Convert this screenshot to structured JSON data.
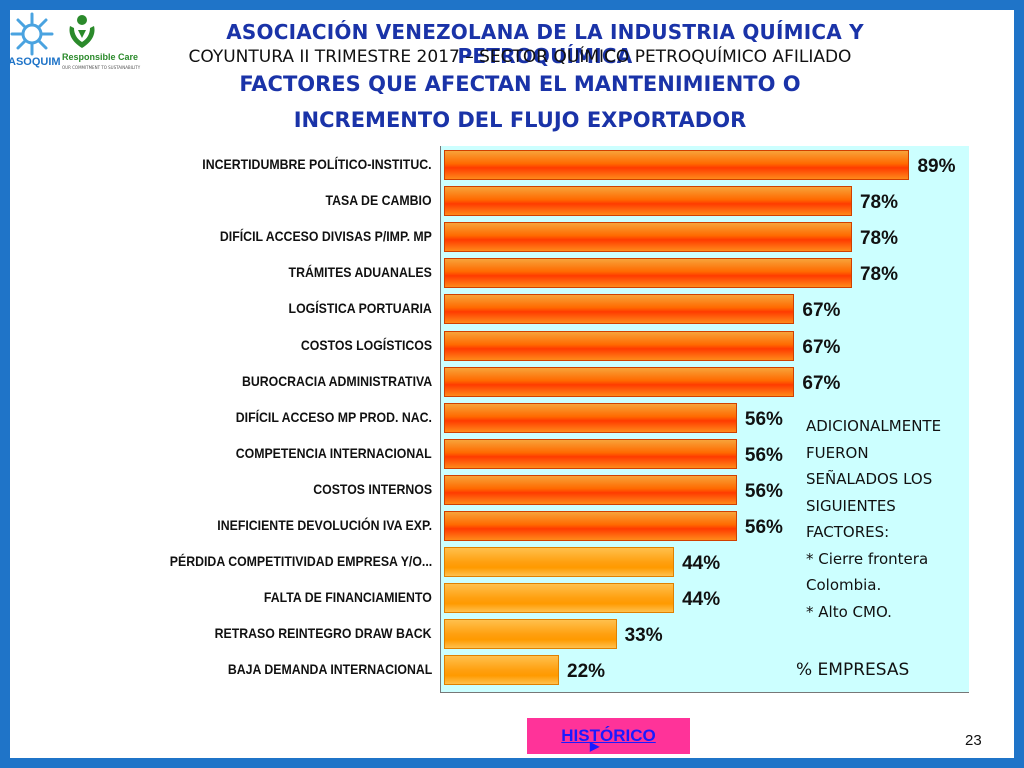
{
  "header": {
    "org": "ASOCIACIÓN VENEZOLANA DE LA INDUSTRIA QUÍMICA Y PETROQUÍMICA",
    "subtitle": "COYUNTURA II TRIMESTRE 2017 – SECTOR QUÍMICO PETROQUÍMICO AFILIADO",
    "title_line1": "FACTORES QUE AFECTAN EL MANTENIMIENTO O",
    "title_line2": "INCREMENTO DEL FLUJO EXPORTADOR"
  },
  "logos": {
    "asoquim": "ASOQUIM",
    "responsible_care": "Responsible Care",
    "responsible_care_tagline": "OUR COMMITMENT TO SUSTAINABILITY"
  },
  "colors": {
    "frame": "#1f74c8",
    "plot_bg": "#ccffff",
    "title": "#1a33a8",
    "bar_high": "#ff3b00",
    "bar_low": "#ffa010",
    "historico_button": "#ff3399"
  },
  "chart_data": {
    "type": "bar",
    "orientation": "horizontal",
    "categories": [
      "INCERTIDUMBRE POLÍTICO-INSTITUC.",
      "TASA DE CAMBIO",
      "DIFÍCIL ACCESO DIVISAS P/IMP. MP",
      "TRÁMITES ADUANALES",
      "LOGÍSTICA PORTUARIA",
      "COSTOS LOGÍSTICOS",
      "BUROCRACIA ADMINISTRATIVA",
      "DIFÍCIL ACCESO MP PROD. NAC.",
      "COMPETENCIA INTERNACIONAL",
      "COSTOS INTERNOS",
      "INEFICIENTE DEVOLUCIÓN IVA EXP.",
      "PÉRDIDA COMPETITIVIDAD EMPRESA Y/O...",
      "FALTA DE FINANCIAMIENTO",
      "RETRASO REINTEGRO DRAW BACK",
      "BAJA DEMANDA INTERNACIONAL"
    ],
    "values": [
      89,
      78,
      78,
      78,
      67,
      67,
      67,
      56,
      56,
      56,
      56,
      44,
      44,
      33,
      22
    ],
    "labels": [
      "89%",
      "78%",
      "78%",
      "78%",
      "67%",
      "67%",
      "67%",
      "56%",
      "56%",
      "56%",
      "56%",
      "44%",
      "44%",
      "33%",
      "22%"
    ],
    "xlim": [
      0,
      100
    ],
    "unit_label": "% EMPRESAS",
    "grid": false,
    "legend": "none"
  },
  "notes": [
    "ADICIONALMENTE",
    "FUERON",
    "SEÑALADOS LOS",
    "SIGUIENTES",
    "FACTORES:",
    "* Cierre frontera",
    "Colombia.",
    "* Alto CMO."
  ],
  "nav": {
    "historico_label": "HISTÓRICO"
  },
  "footer": {
    "page_number": "23"
  }
}
